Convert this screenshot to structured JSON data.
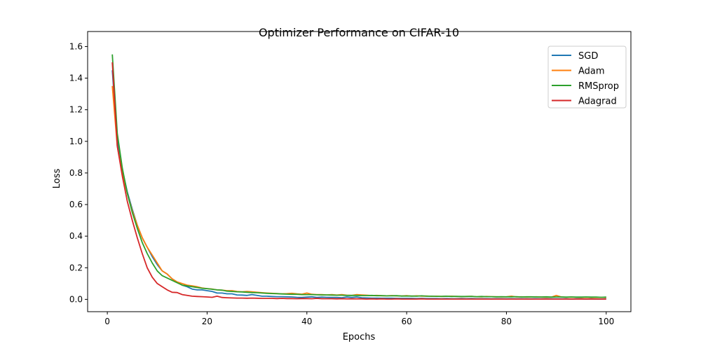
{
  "chart_data": {
    "type": "line",
    "title": "Optimizer Performance on CIFAR-10",
    "xlabel": "Epochs",
    "ylabel": "Loss",
    "xlim": [
      -3.95,
      104.95
    ],
    "ylim": [
      -0.078,
      1.695
    ],
    "xticks": [
      0,
      20,
      40,
      60,
      80,
      100
    ],
    "xtick_labels": [
      "0",
      "20",
      "40",
      "60",
      "80",
      "100"
    ],
    "yticks": [
      0.0,
      0.2,
      0.4,
      0.6,
      0.8,
      1.0,
      1.2,
      1.4,
      1.6
    ],
    "ytick_labels": [
      "0.0",
      "0.2",
      "0.4",
      "0.6",
      "0.8",
      "1.0",
      "1.2",
      "1.4",
      "1.6"
    ],
    "grid": false,
    "legend_position": "top-right",
    "x_start": 1,
    "series": [
      {
        "name": "SGD",
        "color": "#1f77b4",
        "values": [
          1.45,
          1.0,
          0.82,
          0.68,
          0.57,
          0.47,
          0.39,
          0.33,
          0.27,
          0.22,
          0.18,
          0.16,
          0.13,
          0.11,
          0.09,
          0.08,
          0.065,
          0.06,
          0.06,
          0.055,
          0.05,
          0.04,
          0.04,
          0.035,
          0.035,
          0.028,
          0.027,
          0.025,
          0.03,
          0.025,
          0.02,
          0.02,
          0.018,
          0.017,
          0.017,
          0.016,
          0.015,
          0.013,
          0.012,
          0.014,
          0.016,
          0.012,
          0.014,
          0.013,
          0.012,
          0.012,
          0.01,
          0.015,
          0.012,
          0.015,
          0.01,
          0.009,
          0.008,
          0.008,
          0.007,
          0.007,
          0.007,
          0.006,
          0.006,
          0.006,
          0.006,
          0.005,
          0.006,
          0.005,
          0.005,
          0.005,
          0.004,
          0.005,
          0.004,
          0.004,
          0.005,
          0.004,
          0.005,
          0.004,
          0.004,
          0.004,
          0.003,
          0.004,
          0.004,
          0.003,
          0.004,
          0.003,
          0.004,
          0.003,
          0.003,
          0.004,
          0.003,
          0.003,
          0.003,
          0.003,
          0.003,
          0.003,
          0.002,
          0.003,
          0.003,
          0.002,
          0.003,
          0.002,
          0.002,
          0.003
        ]
      },
      {
        "name": "Adam",
        "color": "#ff7f0e",
        "values": [
          1.35,
          0.97,
          0.8,
          0.67,
          0.56,
          0.47,
          0.39,
          0.33,
          0.28,
          0.23,
          0.18,
          0.16,
          0.13,
          0.11,
          0.1,
          0.09,
          0.085,
          0.08,
          0.072,
          0.068,
          0.065,
          0.06,
          0.058,
          0.055,
          0.055,
          0.05,
          0.048,
          0.05,
          0.048,
          0.045,
          0.042,
          0.04,
          0.038,
          0.037,
          0.035,
          0.036,
          0.038,
          0.035,
          0.033,
          0.04,
          0.032,
          0.03,
          0.03,
          0.028,
          0.03,
          0.027,
          0.03,
          0.026,
          0.025,
          0.03,
          0.028,
          0.026,
          0.024,
          0.025,
          0.023,
          0.022,
          0.024,
          0.022,
          0.021,
          0.023,
          0.02,
          0.022,
          0.02,
          0.021,
          0.019,
          0.02,
          0.018,
          0.019,
          0.02,
          0.018,
          0.017,
          0.018,
          0.019,
          0.017,
          0.016,
          0.018,
          0.017,
          0.016,
          0.015,
          0.016,
          0.02,
          0.015,
          0.016,
          0.014,
          0.015,
          0.016,
          0.014,
          0.013,
          0.014,
          0.025,
          0.015,
          0.013,
          0.014,
          0.013,
          0.012,
          0.013,
          0.012,
          0.012,
          0.013,
          0.012
        ]
      },
      {
        "name": "RMSprop",
        "color": "#2ca02c",
        "values": [
          1.55,
          1.05,
          0.83,
          0.67,
          0.55,
          0.45,
          0.36,
          0.29,
          0.23,
          0.18,
          0.15,
          0.135,
          0.12,
          0.105,
          0.09,
          0.085,
          0.08,
          0.075,
          0.07,
          0.068,
          0.064,
          0.06,
          0.058,
          0.052,
          0.05,
          0.048,
          0.047,
          0.045,
          0.043,
          0.042,
          0.04,
          0.038,
          0.037,
          0.036,
          0.034,
          0.033,
          0.032,
          0.032,
          0.03,
          0.03,
          0.03,
          0.029,
          0.028,
          0.028,
          0.027,
          0.026,
          0.026,
          0.025,
          0.025,
          0.025,
          0.024,
          0.024,
          0.025,
          0.023,
          0.023,
          0.022,
          0.022,
          0.023,
          0.021,
          0.021,
          0.021,
          0.02,
          0.022,
          0.02,
          0.02,
          0.019,
          0.019,
          0.02,
          0.018,
          0.019,
          0.018,
          0.018,
          0.019,
          0.017,
          0.018,
          0.017,
          0.017,
          0.016,
          0.017,
          0.016,
          0.016,
          0.017,
          0.015,
          0.016,
          0.016,
          0.015,
          0.015,
          0.016,
          0.014,
          0.015,
          0.015,
          0.014,
          0.015,
          0.014,
          0.014,
          0.015,
          0.014,
          0.014,
          0.013,
          0.014
        ]
      },
      {
        "name": "Adagrad",
        "color": "#d62728",
        "values": [
          1.5,
          0.97,
          0.78,
          0.62,
          0.5,
          0.39,
          0.29,
          0.2,
          0.14,
          0.1,
          0.08,
          0.06,
          0.045,
          0.043,
          0.03,
          0.025,
          0.02,
          0.018,
          0.017,
          0.015,
          0.013,
          0.02,
          0.012,
          0.01,
          0.009,
          0.008,
          0.008,
          0.007,
          0.008,
          0.007,
          0.006,
          0.006,
          0.006,
          0.005,
          0.006,
          0.005,
          0.005,
          0.004,
          0.005,
          0.005,
          0.004,
          0.006,
          0.004,
          0.004,
          0.004,
          0.003,
          0.004,
          0.003,
          0.003,
          0.003,
          0.003,
          0.002,
          0.003,
          0.002,
          0.003,
          0.002,
          0.002,
          0.003,
          0.002,
          0.002,
          0.002,
          0.002,
          0.003,
          0.002,
          0.002,
          0.002,
          0.002,
          0.002,
          0.002,
          0.002,
          0.002,
          0.002,
          0.002,
          0.002,
          0.002,
          0.002,
          0.002,
          0.002,
          0.002,
          0.002,
          0.002,
          0.002,
          0.002,
          0.002,
          0.002,
          0.002,
          0.002,
          0.002,
          0.002,
          0.002,
          0.002,
          0.002,
          0.002,
          0.002,
          0.002,
          0.002,
          0.002,
          0.002,
          0.002,
          0.002
        ]
      }
    ]
  }
}
